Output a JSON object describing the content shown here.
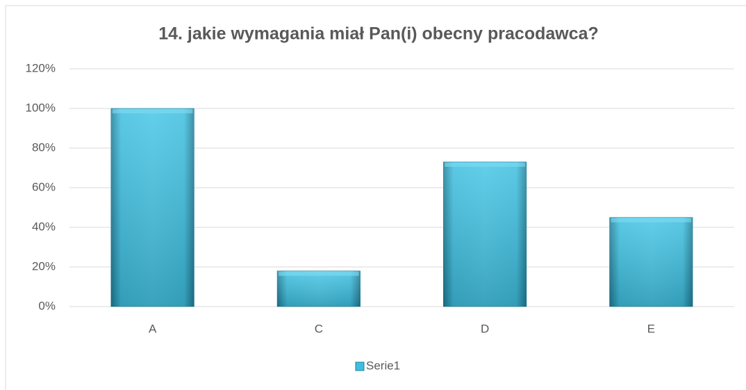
{
  "chart_data": {
    "type": "bar",
    "title": "14. jakie wymagania miał Pan(i) obecny pracodawca?",
    "categories": [
      "A",
      "C",
      "D",
      "E"
    ],
    "series": [
      {
        "name": "Serie1",
        "color": "#3ebfe0",
        "values": [
          100,
          18,
          73,
          45
        ]
      }
    ],
    "ylim": [
      0,
      120
    ],
    "yticks": [
      {
        "value": 0,
        "label": "0%"
      },
      {
        "value": 20,
        "label": "20%"
      },
      {
        "value": 40,
        "label": "40%"
      },
      {
        "value": 60,
        "label": "60%"
      },
      {
        "value": 80,
        "label": "80%"
      },
      {
        "value": 100,
        "label": "100%"
      },
      {
        "value": 120,
        "label": "120%"
      }
    ],
    "grid": true,
    "legend": "bottom"
  }
}
